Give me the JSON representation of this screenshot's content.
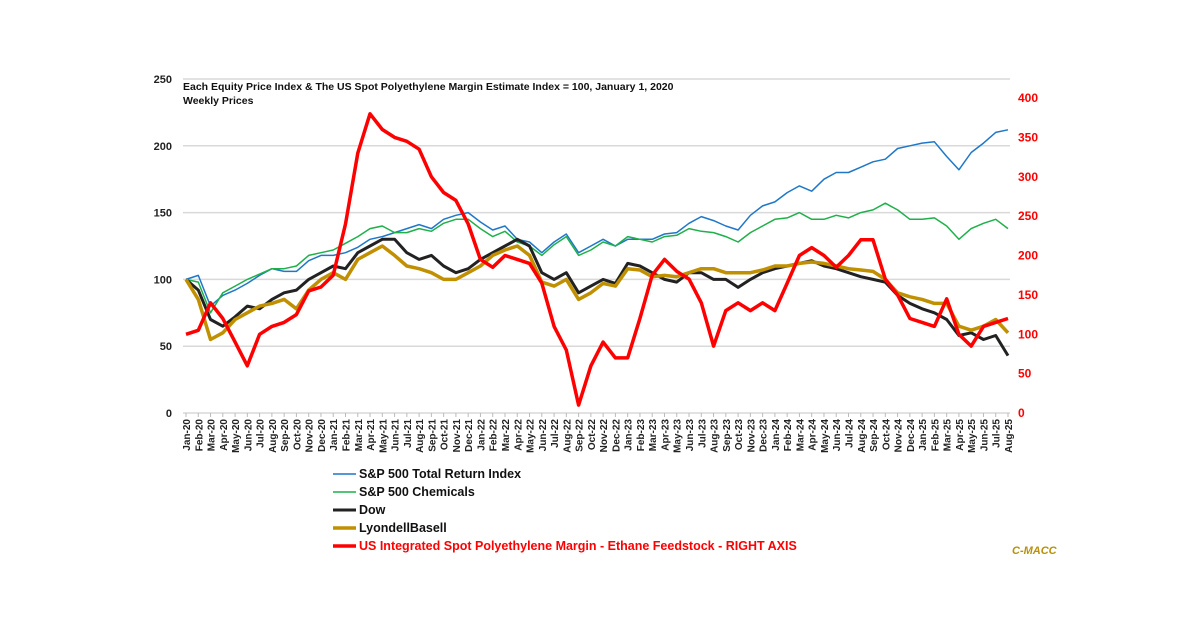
{
  "chart_data": {
    "type": "line",
    "title": "Each Equity Price Index & The US Spot Polyethylene Margin Estimate Index = 100, January 1, 2020",
    "subtitle": "Weekly Prices",
    "credit": "C-MACC",
    "ylim": [
      0,
      250
    ],
    "yticks": [
      "0",
      "50",
      "100",
      "150",
      "200",
      "250"
    ],
    "y2lim": [
      0,
      400
    ],
    "y2ticks": [
      "0",
      "50",
      "100",
      "150",
      "200",
      "250",
      "300",
      "350",
      "400"
    ],
    "grid": true,
    "legend_position": "bottom",
    "categories": [
      "Jan-20",
      "Feb-20",
      "Mar-20",
      "Apr-20",
      "May-20",
      "Jun-20",
      "Jul-20",
      "Aug-20",
      "Sep-20",
      "Oct-20",
      "Nov-20",
      "Dec-20",
      "Jan-21",
      "Feb-21",
      "Mar-21",
      "Apr-21",
      "May-21",
      "Jun-21",
      "Jul-21",
      "Aug-21",
      "Sep-21",
      "Oct-21",
      "Nov-21",
      "Dec-21",
      "Jan-22",
      "Feb-22",
      "Mar-22",
      "Apr-22",
      "May-22",
      "Jun-22",
      "Jul-22",
      "Aug-22",
      "Sep-22",
      "Oct-22",
      "Nov-22",
      "Dec-22",
      "Jan-23",
      "Feb-23",
      "Mar-23",
      "Apr-23",
      "May-23",
      "Jun-23",
      "Jul-23",
      "Aug-23",
      "Sep-23",
      "Oct-23",
      "Nov-23",
      "Dec-23",
      "Jan-24",
      "Feb-24",
      "Mar-24",
      "Apr-24",
      "May-24",
      "Jun-24",
      "Jul-24",
      "Aug-24",
      "Sep-24",
      "Oct-24",
      "Nov-24",
      "Dec-24",
      "Jan-25",
      "Feb-25",
      "Mar-25",
      "Apr-25",
      "May-25",
      "Jun-25",
      "Jul-25",
      "Aug-25"
    ],
    "series": [
      {
        "name": "S&P 500 Total Return Index",
        "color": "#1f77c8",
        "axis": "left",
        "width": 1.5,
        "values": [
          100,
          103,
          80,
          88,
          92,
          97,
          103,
          108,
          106,
          106,
          114,
          118,
          118,
          120,
          124,
          130,
          132,
          135,
          138,
          141,
          138,
          145,
          148,
          150,
          143,
          137,
          140,
          130,
          128,
          120,
          128,
          134,
          120,
          125,
          130,
          125,
          130,
          130,
          130,
          134,
          135,
          142,
          147,
          144,
          140,
          137,
          148,
          155,
          158,
          165,
          170,
          166,
          175,
          180,
          180,
          184,
          188,
          190,
          198,
          200,
          202,
          203,
          192,
          182,
          195,
          202,
          210,
          212
        ]
      },
      {
        "name": "S&P 500 Chemicals",
        "color": "#1fb04a",
        "axis": "left",
        "width": 1.5,
        "values": [
          100,
          98,
          75,
          90,
          95,
          100,
          104,
          108,
          108,
          110,
          118,
          120,
          122,
          127,
          132,
          138,
          140,
          135,
          135,
          138,
          136,
          142,
          145,
          145,
          138,
          132,
          136,
          128,
          125,
          118,
          126,
          132,
          118,
          122,
          128,
          125,
          132,
          130,
          128,
          132,
          133,
          138,
          136,
          135,
          132,
          128,
          135,
          140,
          145,
          146,
          150,
          145,
          145,
          148,
          146,
          150,
          152,
          157,
          152,
          145,
          145,
          146,
          140,
          130,
          138,
          142,
          145,
          138
        ]
      },
      {
        "name": "Dow",
        "color": "#222222",
        "axis": "left",
        "width": 3,
        "values": [
          100,
          92,
          70,
          65,
          72,
          80,
          78,
          85,
          90,
          92,
          100,
          105,
          110,
          108,
          120,
          125,
          130,
          130,
          120,
          115,
          118,
          110,
          105,
          108,
          115,
          120,
          125,
          130,
          125,
          105,
          100,
          105,
          90,
          95,
          100,
          97,
          112,
          110,
          105,
          100,
          98,
          105,
          105,
          100,
          100,
          94,
          100,
          105,
          108,
          110,
          112,
          114,
          110,
          108,
          105,
          102,
          100,
          98,
          88,
          82,
          78,
          75,
          70,
          58,
          60,
          55,
          58,
          43
        ]
      },
      {
        "name": "LyondellBasell",
        "color": "#c09000",
        "axis": "left",
        "width": 3.5,
        "values": [
          100,
          85,
          55,
          60,
          70,
          75,
          80,
          82,
          85,
          78,
          92,
          100,
          105,
          100,
          115,
          120,
          125,
          118,
          110,
          108,
          105,
          100,
          100,
          105,
          110,
          118,
          122,
          125,
          118,
          98,
          95,
          100,
          85,
          90,
          97,
          95,
          108,
          107,
          102,
          103,
          102,
          105,
          108,
          108,
          105,
          105,
          105,
          107,
          110,
          110,
          112,
          113,
          112,
          110,
          108,
          107,
          106,
          100,
          90,
          87,
          85,
          82,
          82,
          65,
          62,
          65,
          70,
          60
        ]
      },
      {
        "name": "US Integrated Spot Polyethylene Margin - Ethane Feedstock - RIGHT AXIS",
        "color": "#ff0000",
        "axis": "right",
        "width": 3.5,
        "values": [
          100,
          105,
          140,
          120,
          90,
          60,
          100,
          110,
          115,
          125,
          155,
          160,
          175,
          240,
          330,
          380,
          360,
          350,
          345,
          335,
          300,
          280,
          270,
          240,
          195,
          185,
          200,
          195,
          190,
          165,
          110,
          80,
          10,
          60,
          90,
          70,
          70,
          120,
          175,
          195,
          180,
          170,
          140,
          85,
          130,
          140,
          130,
          140,
          130,
          165,
          200,
          210,
          200,
          185,
          200,
          220,
          220,
          170,
          150,
          120,
          115,
          110,
          145,
          100,
          85,
          110,
          115,
          120
        ]
      }
    ]
  }
}
